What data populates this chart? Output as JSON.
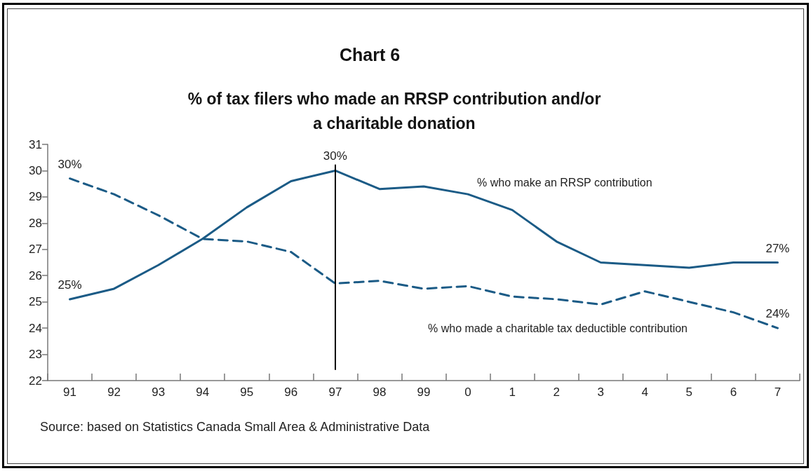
{
  "chart_data": {
    "type": "line",
    "title": "Chart 6",
    "subtitle": "% of tax filers who made an RRSP contribution and/or\na charitable donation",
    "annotations": [
      "Source: based on Statistics Canada Small Area & Administrative Data"
    ],
    "categories": [
      "91",
      "92",
      "93",
      "94",
      "95",
      "96",
      "97",
      "98",
      "99",
      "0",
      "1",
      "2",
      "3",
      "4",
      "5",
      "6",
      "7"
    ],
    "series": [
      {
        "name": "% who make an RRSP contribution",
        "color": "#1b5b86",
        "line_style": "solid",
        "values": [
          25.1,
          25.5,
          26.4,
          27.4,
          28.6,
          29.6,
          30.0,
          29.3,
          29.4,
          29.1,
          28.5,
          27.3,
          26.5,
          26.4,
          26.3,
          26.5,
          26.5
        ],
        "value_labels": [
          "25%",
          null,
          null,
          null,
          null,
          null,
          "30%",
          null,
          null,
          null,
          null,
          null,
          null,
          null,
          null,
          null,
          "27%"
        ]
      },
      {
        "name": "% who made a charitable tax deductible contribution",
        "color": "#1b5b86",
        "line_style": "dashed",
        "values": [
          29.7,
          29.1,
          28.3,
          27.4,
          27.3,
          26.9,
          25.7,
          25.8,
          25.5,
          25.6,
          25.2,
          25.1,
          24.9,
          25.4,
          25.0,
          24.6,
          24.0
        ],
        "value_labels": [
          "30%",
          null,
          null,
          null,
          null,
          null,
          null,
          null,
          null,
          null,
          null,
          null,
          null,
          null,
          null,
          null,
          "24%"
        ]
      }
    ],
    "ylim": [
      22,
      31
    ],
    "yticks": [
      22,
      23,
      24,
      25,
      26,
      27,
      28,
      29,
      30,
      31
    ],
    "grid": false,
    "legend": false,
    "marker": "none",
    "ref_lines": [
      {
        "axis": "x",
        "value": "97",
        "color": "#000000"
      }
    ]
  }
}
